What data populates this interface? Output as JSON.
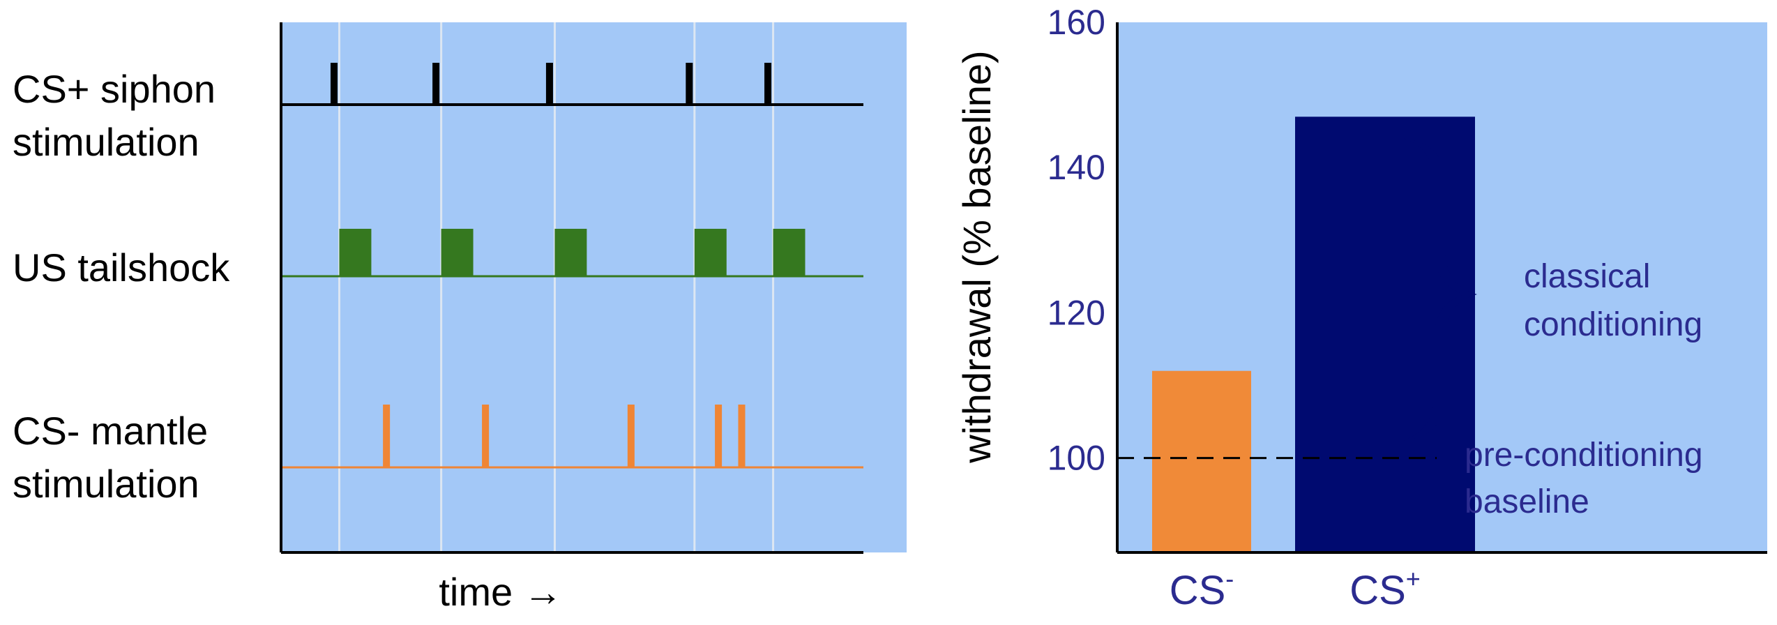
{
  "colors": {
    "panel_bg": "#a3c8f7",
    "cs_plus": "#000000",
    "us": "#35781f",
    "cs_minus": "#ef8535",
    "bar_cs_minus": "#f08a38",
    "bar_cs_plus": "#000a70",
    "annotation": "#2b2b8f",
    "gridline": "#dce6f2"
  },
  "chart_data": [
    {
      "type": "timing",
      "xlabel": "time →",
      "trials_x": [
        0.1,
        0.275,
        0.47,
        0.71,
        0.845
      ],
      "rows": [
        {
          "label_lines": [
            "CS+ siphon",
            "stimulation"
          ],
          "onsets": [
            0.085,
            0.26,
            0.455,
            0.695,
            0.83
          ],
          "durations": [
            0.012,
            0.012,
            0.012,
            0.012,
            0.012
          ]
        },
        {
          "label_lines": [
            "US tailshock"
          ],
          "onsets": [
            0.1,
            0.275,
            0.47,
            0.71,
            0.845
          ],
          "durations": [
            0.055,
            0.055,
            0.055,
            0.055,
            0.055
          ]
        },
        {
          "label_lines": [
            "CS- mantle",
            "stimulation"
          ],
          "onsets": [
            0.175,
            0.345,
            0.595,
            0.745,
            0.785
          ],
          "durations": [
            0.012,
            0.012,
            0.012,
            0.012,
            0.012
          ]
        }
      ]
    },
    {
      "type": "bar",
      "categories": [
        {
          "base": "CS",
          "sup": "-"
        },
        {
          "base": "CS",
          "sup": "+"
        }
      ],
      "values": [
        112,
        147
      ],
      "ylabel": "withdrawal (% baseline)",
      "yticks": [
        100,
        120,
        140,
        160
      ],
      "ylim": [
        87,
        160
      ],
      "baseline": 100,
      "annotations": {
        "brace_lines": [
          "classical",
          "conditioning"
        ],
        "baseline_lines": [
          "pre-conditioning",
          "baseline"
        ]
      }
    }
  ]
}
